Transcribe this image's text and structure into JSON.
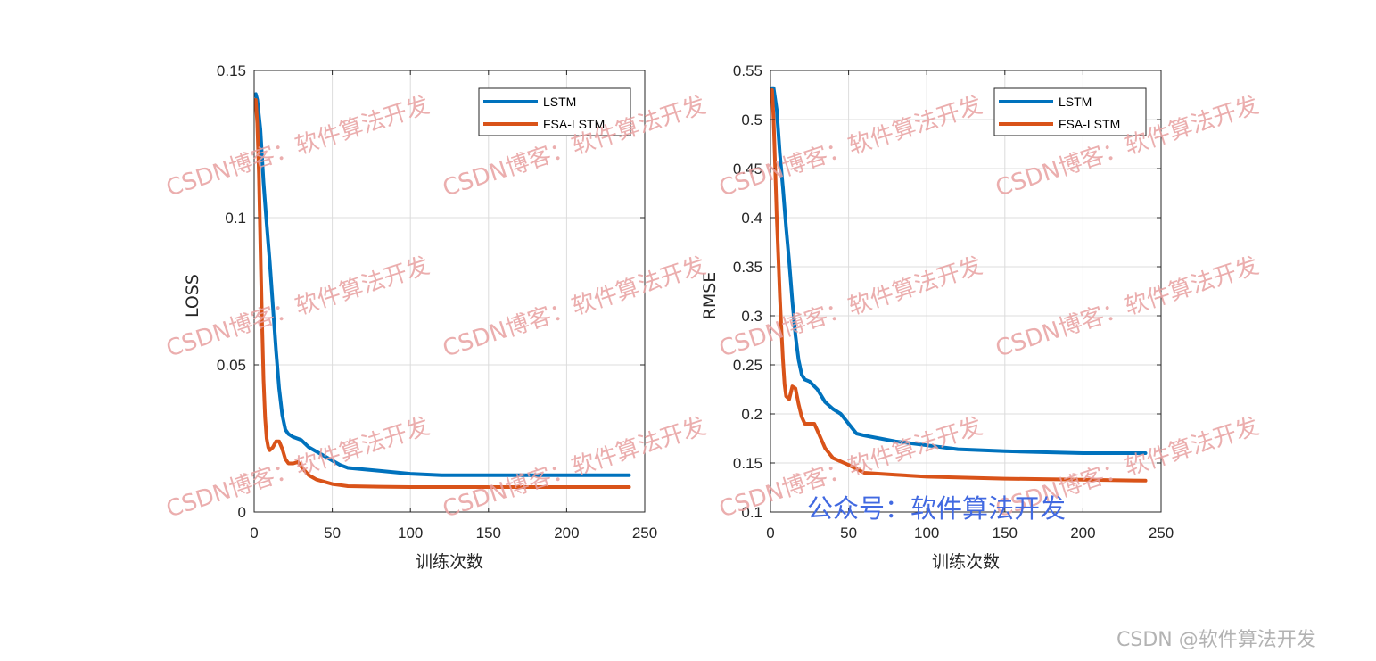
{
  "chart_data": [
    {
      "type": "line",
      "title": "",
      "xlabel": "训练次数",
      "ylabel": "LOSS",
      "xlim": [
        0,
        250
      ],
      "ylim": [
        0,
        0.15
      ],
      "xticks": [
        "0",
        "50",
        "100",
        "150",
        "200",
        "250"
      ],
      "yticks": [
        "0",
        "0.05",
        "0.1",
        "0.15"
      ],
      "grid": true,
      "legend_position": "top-right",
      "series": [
        {
          "name": "LSTM",
          "color": "#0072BD",
          "x": [
            1,
            2,
            4,
            6,
            8,
            10,
            12,
            14,
            16,
            18,
            20,
            22,
            25,
            30,
            35,
            40,
            45,
            50,
            55,
            60,
            70,
            80,
            100,
            120,
            150,
            200,
            240
          ],
          "y": [
            0.142,
            0.14,
            0.13,
            0.112,
            0.098,
            0.085,
            0.07,
            0.055,
            0.042,
            0.033,
            0.028,
            0.0265,
            0.0255,
            0.0245,
            0.022,
            0.0205,
            0.019,
            0.0175,
            0.016,
            0.015,
            0.0145,
            0.014,
            0.013,
            0.0125,
            0.0125,
            0.0125,
            0.0125
          ]
        },
        {
          "name": "FSA-LSTM",
          "color": "#D95319",
          "x": [
            1,
            2,
            3,
            4,
            5,
            6,
            7,
            8,
            9,
            10,
            12,
            14,
            16,
            18,
            20,
            22,
            25,
            28,
            30,
            35,
            40,
            50,
            60,
            80,
            100,
            150,
            200,
            240
          ],
          "y": [
            0.14,
            0.132,
            0.115,
            0.09,
            0.065,
            0.045,
            0.032,
            0.025,
            0.022,
            0.021,
            0.022,
            0.024,
            0.024,
            0.0215,
            0.018,
            0.0165,
            0.0165,
            0.017,
            0.0155,
            0.0125,
            0.011,
            0.0095,
            0.0088,
            0.0086,
            0.0085,
            0.0085,
            0.0085,
            0.0085
          ]
        }
      ]
    },
    {
      "type": "line",
      "title": "",
      "xlabel": "训练次数",
      "ylabel": "RMSE",
      "xlim": [
        0,
        250
      ],
      "ylim": [
        0.1,
        0.55
      ],
      "xticks": [
        "0",
        "50",
        "100",
        "150",
        "200",
        "250"
      ],
      "yticks": [
        "0.1",
        "0.15",
        "0.2",
        "0.25",
        "0.3",
        "0.35",
        "0.4",
        "0.45",
        "0.5",
        "0.55"
      ],
      "grid": true,
      "legend_position": "top-right",
      "series": [
        {
          "name": "LSTM",
          "color": "#0072BD",
          "x": [
            1,
            2,
            4,
            6,
            8,
            10,
            12,
            14,
            16,
            18,
            20,
            22,
            25,
            30,
            35,
            40,
            45,
            50,
            55,
            60,
            70,
            80,
            100,
            120,
            150,
            200,
            240
          ],
          "y": [
            0.532,
            0.532,
            0.51,
            0.465,
            0.43,
            0.39,
            0.355,
            0.315,
            0.28,
            0.255,
            0.24,
            0.235,
            0.233,
            0.225,
            0.212,
            0.205,
            0.2,
            0.19,
            0.18,
            0.178,
            0.175,
            0.172,
            0.168,
            0.164,
            0.162,
            0.16,
            0.16
          ]
        },
        {
          "name": "FSA-LSTM",
          "color": "#D95319",
          "x": [
            1,
            2,
            3,
            4,
            5,
            6,
            7,
            8,
            9,
            10,
            12,
            14,
            16,
            18,
            20,
            22,
            25,
            28,
            30,
            35,
            40,
            50,
            60,
            80,
            100,
            150,
            200,
            240
          ],
          "y": [
            0.53,
            0.5,
            0.45,
            0.4,
            0.36,
            0.32,
            0.285,
            0.255,
            0.23,
            0.218,
            0.215,
            0.228,
            0.226,
            0.21,
            0.197,
            0.19,
            0.19,
            0.19,
            0.183,
            0.165,
            0.155,
            0.148,
            0.14,
            0.138,
            0.136,
            0.134,
            0.133,
            0.132
          ]
        }
      ]
    }
  ],
  "watermark_text": "CSDN博客：软件算法开发",
  "blue_watermark_text": "公众号：软件算法开发",
  "credit_text": "CSDN @软件算法开发"
}
